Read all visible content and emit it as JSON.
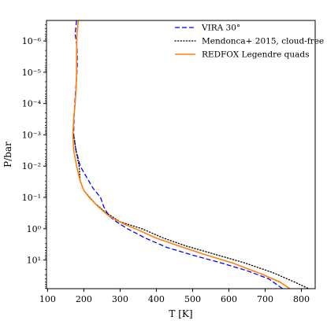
{
  "chart_data": {
    "type": "line",
    "title": "",
    "xlabel": "T [K]",
    "ylabel": "P/bar",
    "xlim": [
      97,
      838
    ],
    "ylim": [
      82.5,
      2.2e-07
    ],
    "x_scale": "linear",
    "y_scale": "log",
    "y_inverted": true,
    "grid": false,
    "legend_position": "top-right",
    "x_ticks": [
      100,
      200,
      300,
      400,
      500,
      600,
      700,
      800
    ],
    "x_tick_labels": [
      "100",
      "200",
      "300",
      "400",
      "500",
      "600",
      "700",
      "800"
    ],
    "y_ticks": [
      1e-06,
      1e-05,
      0.0001,
      0.001,
      0.01,
      0.1,
      1,
      10
    ],
    "y_tick_labels": [
      "10⁻⁶",
      "10⁻⁵",
      "10⁻⁴",
      "10⁻³",
      "10⁻²",
      "10⁻¹",
      "10⁰",
      "10¹"
    ],
    "series": [
      {
        "name": "VIRA 30°",
        "color": "#0000ff",
        "style": "dashed",
        "points": [
          [
            180,
            2.2e-07
          ],
          [
            176,
            6e-07
          ],
          [
            181,
            1.5e-06
          ],
          [
            182,
            5e-06
          ],
          [
            181,
            1e-05
          ],
          [
            178,
            3e-05
          ],
          [
            175,
            0.0001
          ],
          [
            173,
            0.0003
          ],
          [
            172,
            0.001
          ],
          [
            178,
            0.003
          ],
          [
            190,
            0.01
          ],
          [
            205,
            0.02
          ],
          [
            225,
            0.05
          ],
          [
            246,
            0.1
          ],
          [
            255,
            0.2
          ],
          [
            270,
            0.4
          ],
          [
            290,
            0.6
          ],
          [
            320,
            1.0
          ],
          [
            370,
            2.0
          ],
          [
            430,
            4.0
          ],
          [
            500,
            7.0
          ],
          [
            580,
            12.5
          ],
          [
            650,
            22.0
          ],
          [
            710,
            40.0
          ],
          [
            748,
            82.5
          ]
        ]
      },
      {
        "name": "Mendonca+ 2015, cloud-free",
        "color": "#000000",
        "style": "dotted",
        "points": [
          [
            172,
            0.001
          ],
          [
            178,
            0.003
          ],
          [
            187,
            0.01
          ],
          [
            190,
            0.03
          ],
          [
            200,
            0.06
          ],
          [
            230,
            0.15
          ],
          [
            260,
            0.3
          ],
          [
            300,
            0.6
          ],
          [
            360,
            1.0
          ],
          [
            420,
            2.0
          ],
          [
            480,
            3.5
          ],
          [
            560,
            6.5
          ],
          [
            640,
            12.0
          ],
          [
            720,
            25.0
          ],
          [
            780,
            50.0
          ],
          [
            820,
            82.5
          ]
        ]
      },
      {
        "name": "REDFOX Legendre quads",
        "color": "#ff7f0e",
        "style": "solid",
        "points": [
          [
            185,
            2.2e-07
          ],
          [
            181,
            6e-07
          ],
          [
            180,
            2e-06
          ],
          [
            180,
            1e-05
          ],
          [
            179,
            3e-05
          ],
          [
            176,
            0.0001
          ],
          [
            172,
            0.0003
          ],
          [
            170,
            0.001
          ],
          [
            172,
            0.003
          ],
          [
            180,
            0.01
          ],
          [
            190,
            0.03
          ],
          [
            200,
            0.06
          ],
          [
            215,
            0.1
          ],
          [
            240,
            0.2
          ],
          [
            270,
            0.4
          ],
          [
            310,
            0.7
          ],
          [
            350,
            1.1
          ],
          [
            400,
            2.0
          ],
          [
            460,
            3.5
          ],
          [
            530,
            6.5
          ],
          [
            610,
            12.5
          ],
          [
            690,
            28.0
          ],
          [
            740,
            50.0
          ],
          [
            768,
            82.5
          ]
        ]
      }
    ]
  }
}
